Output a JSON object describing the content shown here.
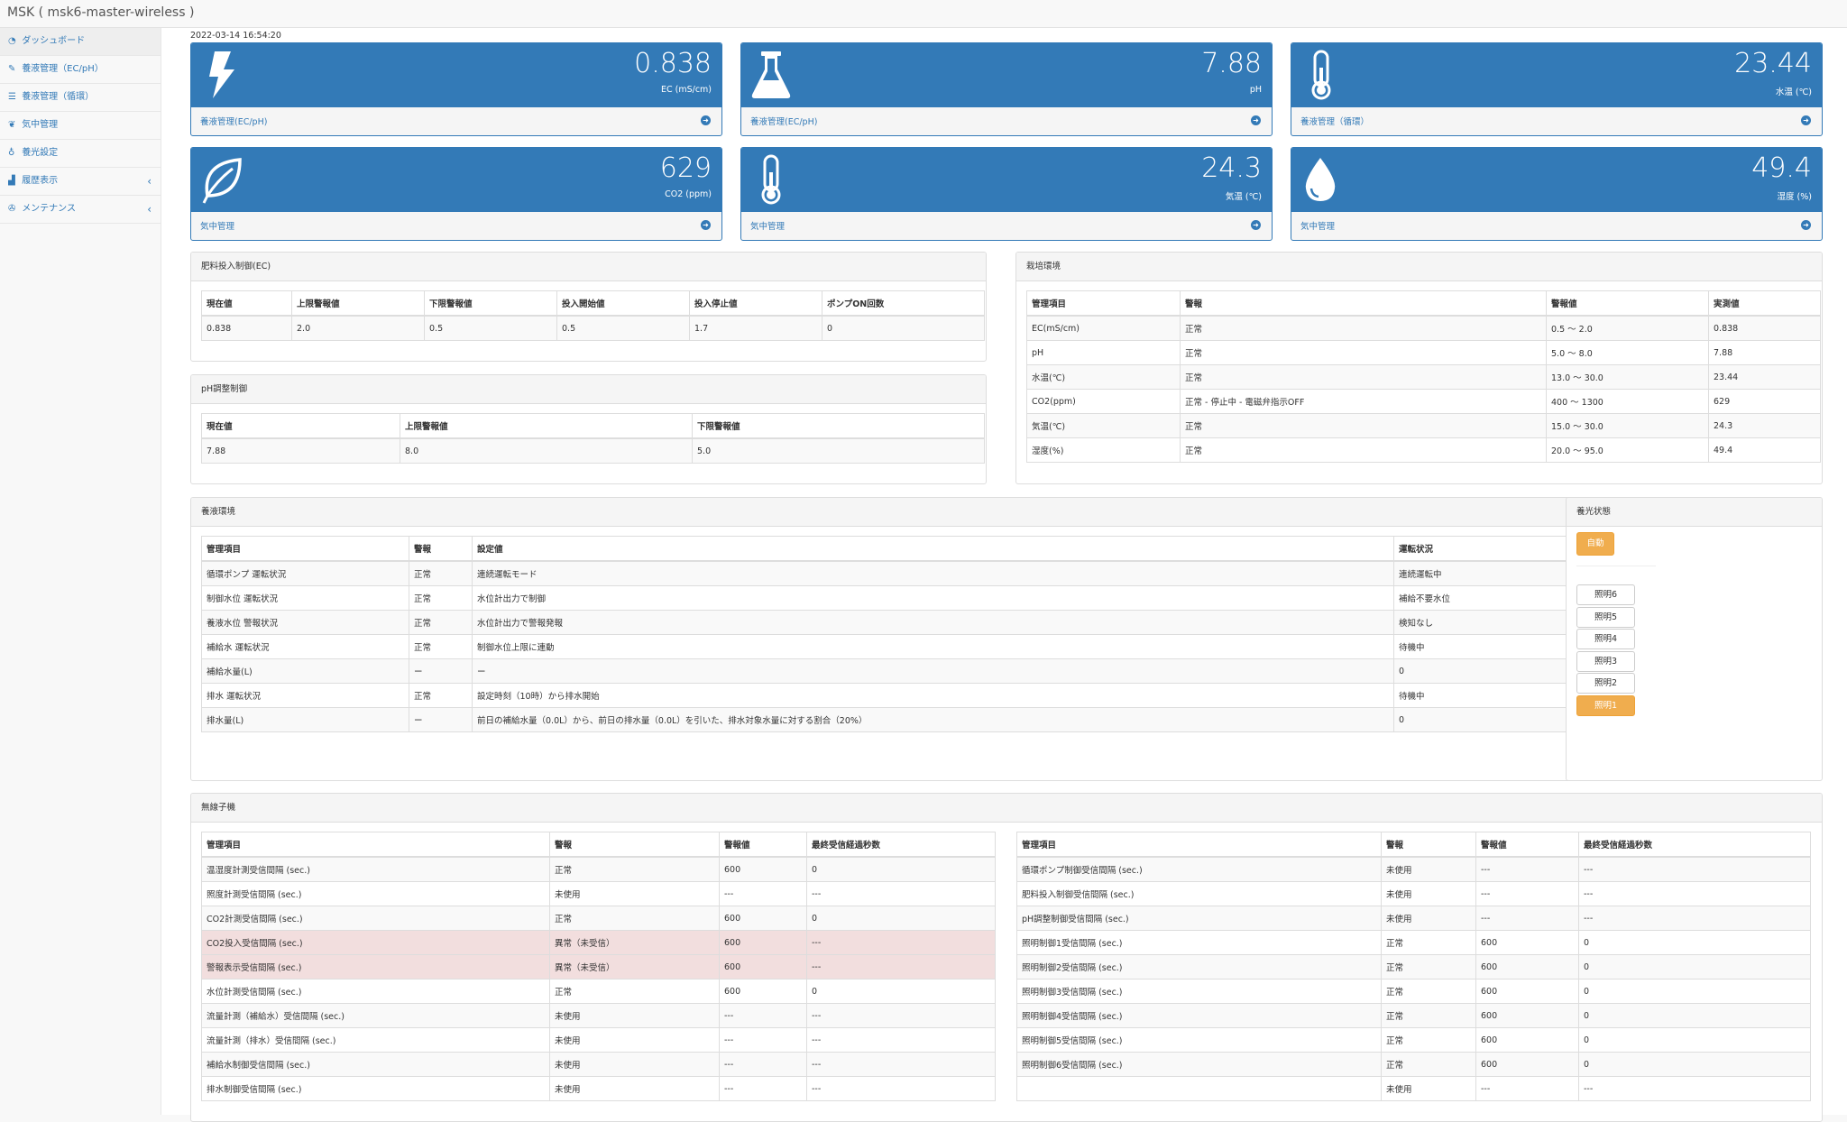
{
  "app": {
    "title": "MSK ( msk6-master-wireless )"
  },
  "sidebar": {
    "items": [
      {
        "label": "ダッシュボード",
        "icon": "dashboard-icon"
      },
      {
        "label": "養液管理（EC/pH）",
        "icon": "pencil-icon"
      },
      {
        "label": "養液管理（循環）",
        "icon": "list-icon"
      },
      {
        "label": "気中管理",
        "icon": "leaf-icon"
      },
      {
        "label": "養光設定",
        "icon": "lightbulb-icon"
      },
      {
        "label": "履歴表示",
        "icon": "line-chart-icon"
      },
      {
        "label": "メンテナンス",
        "icon": "wrench-icon"
      }
    ]
  },
  "timestamp": "2022-03-14 16:54:20",
  "cards": [
    {
      "value": "0.838",
      "unit": "EC (mS/cm)",
      "link": "養液管理(EC/pH)",
      "icon": "bolt-icon"
    },
    {
      "value": "7.88",
      "unit": "pH",
      "link": "養液管理(EC/pH)",
      "icon": "flask-icon"
    },
    {
      "value": "23.44",
      "unit": "水温 (℃)",
      "link": "養液管理（循環）",
      "icon": "thermometer-icon"
    },
    {
      "value": "629",
      "unit": "CO2 (ppm)",
      "link": "気中管理",
      "icon": "leaf-icon"
    },
    {
      "value": "24.3",
      "unit": "気温 (℃)",
      "link": "気中管理",
      "icon": "thermometer-icon"
    },
    {
      "value": "49.4",
      "unit": "湿度 (%)",
      "link": "気中管理",
      "icon": "droplet-icon"
    }
  ],
  "fert": {
    "title": "肥料投入制御(EC)",
    "headers": [
      "現在値",
      "上限警報値",
      "下限警報値",
      "投入開始値",
      "投入停止値",
      "ポンプON回数"
    ],
    "rows": [
      [
        "0.838",
        "2.0",
        "0.5",
        "0.5",
        "1.7",
        "0"
      ]
    ]
  },
  "ph": {
    "title": "pH調整制御",
    "headers": [
      "現在値",
      "上限警報値",
      "下限警報値"
    ],
    "rows": [
      [
        "7.88",
        "8.0",
        "5.0"
      ]
    ]
  },
  "env": {
    "title": "栽培環境",
    "headers": [
      "管理項目",
      "警報",
      "警報値",
      "実測値"
    ],
    "rows": [
      [
        "EC(mS/cm)",
        "正常",
        "0.5 〜 2.0",
        "0.838"
      ],
      [
        "pH",
        "正常",
        "5.0 〜 8.0",
        "7.88"
      ],
      [
        "水温(℃)",
        "正常",
        "13.0 〜 30.0",
        "23.44"
      ],
      [
        "CO2(ppm)",
        "正常 - 停止中 - 電磁弁指示OFF",
        "400 〜 1300",
        "629"
      ],
      [
        "気温(℃)",
        "正常",
        "15.0 〜 30.0",
        "24.3"
      ],
      [
        "湿度(%)",
        "正常",
        "20.0 〜 95.0",
        "49.4"
      ]
    ]
  },
  "nutrient": {
    "title": "養液環境",
    "headers": [
      "管理項目",
      "警報",
      "設定値",
      "運転状況"
    ],
    "rows": [
      [
        "循環ポンプ 運転状況",
        "正常",
        "連続運転モード",
        "連続運転中"
      ],
      [
        "制御水位 運転状況",
        "正常",
        "水位計出力で制御",
        "補給不要水位"
      ],
      [
        "養液水位 警報状況",
        "正常",
        "水位計出力で警報発報",
        "検知なし"
      ],
      [
        "補給水 運転状況",
        "正常",
        "制御水位上限に連動",
        "待機中"
      ],
      [
        "補給水量(L)",
        "ー",
        "ー",
        "0"
      ],
      [
        "排水 運転状況",
        "正常",
        "設定時刻（10時）から排水開始",
        "待機中"
      ],
      [
        "排水量(L)",
        "ー",
        "前日の補給水量（0.0L）から、前日の排水量（0.0L）を引いた、排水対象水量に対する割合（20%）",
        "0"
      ]
    ]
  },
  "light": {
    "title": "養光状態",
    "mode": "自動",
    "buttons": [
      "照明6",
      "照明5",
      "照明4",
      "照明3",
      "照明2",
      "照明1"
    ],
    "active_button": "照明1"
  },
  "wireless": {
    "title": "無線子機",
    "headers": [
      "管理項目",
      "警報",
      "警報値",
      "最終受信経過秒数"
    ],
    "left_rows": [
      [
        "温湿度計測受信間隔 (sec.)",
        "正常",
        "600",
        "0"
      ],
      [
        "照度計測受信間隔 (sec.)",
        "未使用",
        "---",
        "---"
      ],
      [
        "CO2計測受信間隔 (sec.)",
        "正常",
        "600",
        "0"
      ],
      [
        "CO2投入受信間隔 (sec.)",
        "異常（未受信）",
        "600",
        "---"
      ],
      [
        "警報表示受信間隔 (sec.)",
        "異常（未受信）",
        "600",
        "---"
      ],
      [
        "水位計測受信間隔 (sec.)",
        "正常",
        "600",
        "0"
      ],
      [
        "流量計測（補給水）受信間隔 (sec.)",
        "未使用",
        "---",
        "---"
      ],
      [
        "流量計測（排水）受信間隔 (sec.)",
        "未使用",
        "---",
        "---"
      ],
      [
        "補給水制御受信間隔 (sec.)",
        "未使用",
        "---",
        "---"
      ],
      [
        "排水制御受信間隔 (sec.)",
        "未使用",
        "---",
        "---"
      ]
    ],
    "left_alert_rows": [
      3,
      4
    ],
    "alert_color": "#f2dede",
    "right_rows": [
      [
        "循環ポンプ制御受信間隔 (sec.)",
        "未使用",
        "---",
        "---"
      ],
      [
        "肥料投入制御受信間隔 (sec.)",
        "未使用",
        "---",
        "---"
      ],
      [
        "pH調整制御受信間隔 (sec.)",
        "未使用",
        "---",
        "---"
      ],
      [
        "照明制御1受信間隔 (sec.)",
        "正常",
        "600",
        "0"
      ],
      [
        "照明制御2受信間隔 (sec.)",
        "正常",
        "600",
        "0"
      ],
      [
        "照明制御3受信間隔 (sec.)",
        "正常",
        "600",
        "0"
      ],
      [
        "照明制御4受信間隔 (sec.)",
        "正常",
        "600",
        "0"
      ],
      [
        "照明制御5受信間隔 (sec.)",
        "正常",
        "600",
        "0"
      ],
      [
        "照明制御6受信間隔 (sec.)",
        "正常",
        "600",
        "0"
      ],
      [
        "",
        "未使用",
        "---",
        "---"
      ]
    ]
  },
  "colors": {
    "primary": "#337ab7",
    "warning": "#f0ad4e",
    "danger_row": "#f2dede"
  }
}
